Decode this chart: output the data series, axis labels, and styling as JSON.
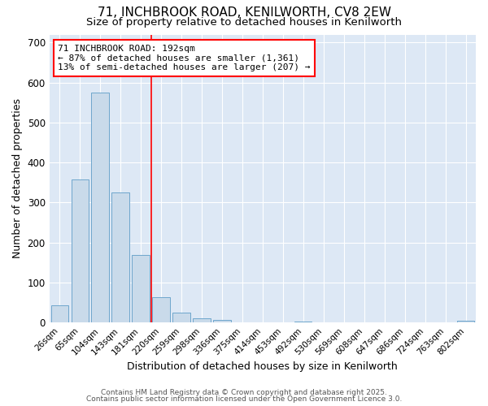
{
  "title1": "71, INCHBROOK ROAD, KENILWORTH, CV8 2EW",
  "title2": "Size of property relative to detached houses in Kenilworth",
  "xlabel": "Distribution of detached houses by size in Kenilworth",
  "ylabel": "Number of detached properties",
  "categories": [
    "26sqm",
    "65sqm",
    "104sqm",
    "143sqm",
    "181sqm",
    "220sqm",
    "259sqm",
    "298sqm",
    "336sqm",
    "375sqm",
    "414sqm",
    "453sqm",
    "492sqm",
    "530sqm",
    "569sqm",
    "608sqm",
    "647sqm",
    "686sqm",
    "724sqm",
    "763sqm",
    "802sqm"
  ],
  "values": [
    43,
    357,
    575,
    325,
    168,
    63,
    25,
    11,
    6,
    1,
    0,
    0,
    3,
    0,
    0,
    0,
    0,
    0,
    0,
    0,
    5
  ],
  "bar_color": "#c9daea",
  "bar_edge_color": "#6ea6cc",
  "red_line_x": 4.5,
  "annotation_line1": "71 INCHBROOK ROAD: 192sqm",
  "annotation_line2": "← 87% of detached houses are smaller (1,361)",
  "annotation_line3": "13% of semi-detached houses are larger (207) →",
  "ylim": [
    0,
    720
  ],
  "yticks": [
    0,
    100,
    200,
    300,
    400,
    500,
    600,
    700
  ],
  "background_color": "#ffffff",
  "plot_bg_color": "#dde8f5",
  "grid_color": "#ffffff",
  "footer1": "Contains HM Land Registry data © Crown copyright and database right 2025.",
  "footer2": "Contains public sector information licensed under the Open Government Licence 3.0.",
  "title_fontsize": 11,
  "subtitle_fontsize": 9.5
}
